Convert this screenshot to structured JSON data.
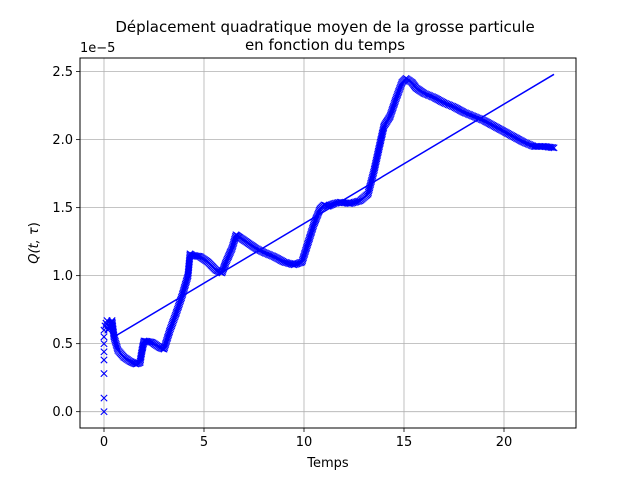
{
  "chart_data": {
    "type": "scatter",
    "title_line1": "Déplacement quadratique moyen de la grosse particule",
    "title_line2": "en fonction du temps",
    "xlabel": "Temps",
    "ylabel_main": "Q(t, ",
    "ylabel_greek": "τ",
    "ylabel_close": ")",
    "offset_text": "1e−5",
    "xlim": [
      -1.2,
      23.6
    ],
    "ylim": [
      -0.12,
      2.6
    ],
    "xticks": [
      0,
      5,
      10,
      15,
      20
    ],
    "xtick_labels": [
      "0",
      "5",
      "10",
      "15",
      "20"
    ],
    "yticks": [
      0.0,
      0.5,
      1.0,
      1.5,
      2.0,
      2.5
    ],
    "ytick_labels": [
      "0.0",
      "0.5",
      "1.0",
      "1.5",
      "2.0",
      "2.5"
    ],
    "grid": true,
    "marker": "x",
    "color": "#0000ff",
    "initial_points": {
      "x": [
        0,
        0,
        0,
        0,
        0,
        0,
        0,
        0,
        0.05,
        0.1,
        0.15
      ],
      "y": [
        0.0,
        0.1,
        0.28,
        0.38,
        0.44,
        0.5,
        0.55,
        0.6,
        0.63,
        0.65,
        0.67
      ]
    },
    "series_x": [
      0.2,
      0.4,
      0.5,
      0.7,
      1.0,
      1.3,
      1.6,
      1.8,
      1.9,
      2.0,
      2.4,
      2.8,
      3.0,
      3.3,
      3.6,
      3.9,
      4.2,
      4.3,
      4.4,
      4.8,
      5.2,
      5.6,
      5.9,
      6.1,
      6.4,
      6.6,
      6.8,
      7.2,
      7.6,
      8.0,
      8.5,
      9.0,
      9.5,
      9.9,
      10.2,
      10.5,
      10.8,
      11.0,
      11.2,
      11.5,
      11.8,
      12.3,
      12.8,
      13.2,
      13.5,
      13.8,
      14.0,
      14.3,
      14.6,
      14.9,
      15.1,
      15.4,
      15.6,
      16.0,
      16.5,
      17.0,
      17.5,
      18.0,
      18.5,
      19.0,
      19.5,
      20.0,
      20.5,
      21.0,
      21.5,
      22.0,
      22.5
    ],
    "series_y": [
      0.6,
      0.67,
      0.55,
      0.45,
      0.4,
      0.37,
      0.35,
      0.36,
      0.45,
      0.52,
      0.51,
      0.47,
      0.46,
      0.6,
      0.72,
      0.85,
      1.0,
      1.16,
      1.15,
      1.14,
      1.1,
      1.04,
      1.02,
      1.1,
      1.2,
      1.3,
      1.28,
      1.24,
      1.2,
      1.17,
      1.14,
      1.1,
      1.08,
      1.1,
      1.24,
      1.38,
      1.49,
      1.52,
      1.51,
      1.53,
      1.54,
      1.53,
      1.55,
      1.6,
      1.77,
      1.97,
      2.1,
      2.17,
      2.3,
      2.42,
      2.45,
      2.42,
      2.38,
      2.34,
      2.31,
      2.27,
      2.24,
      2.2,
      2.17,
      2.14,
      2.1,
      2.06,
      2.02,
      1.98,
      1.95,
      1.95,
      1.94
    ],
    "fit_line": {
      "x": [
        0.5,
        22.5
      ],
      "y": [
        0.55,
        2.48
      ]
    }
  }
}
